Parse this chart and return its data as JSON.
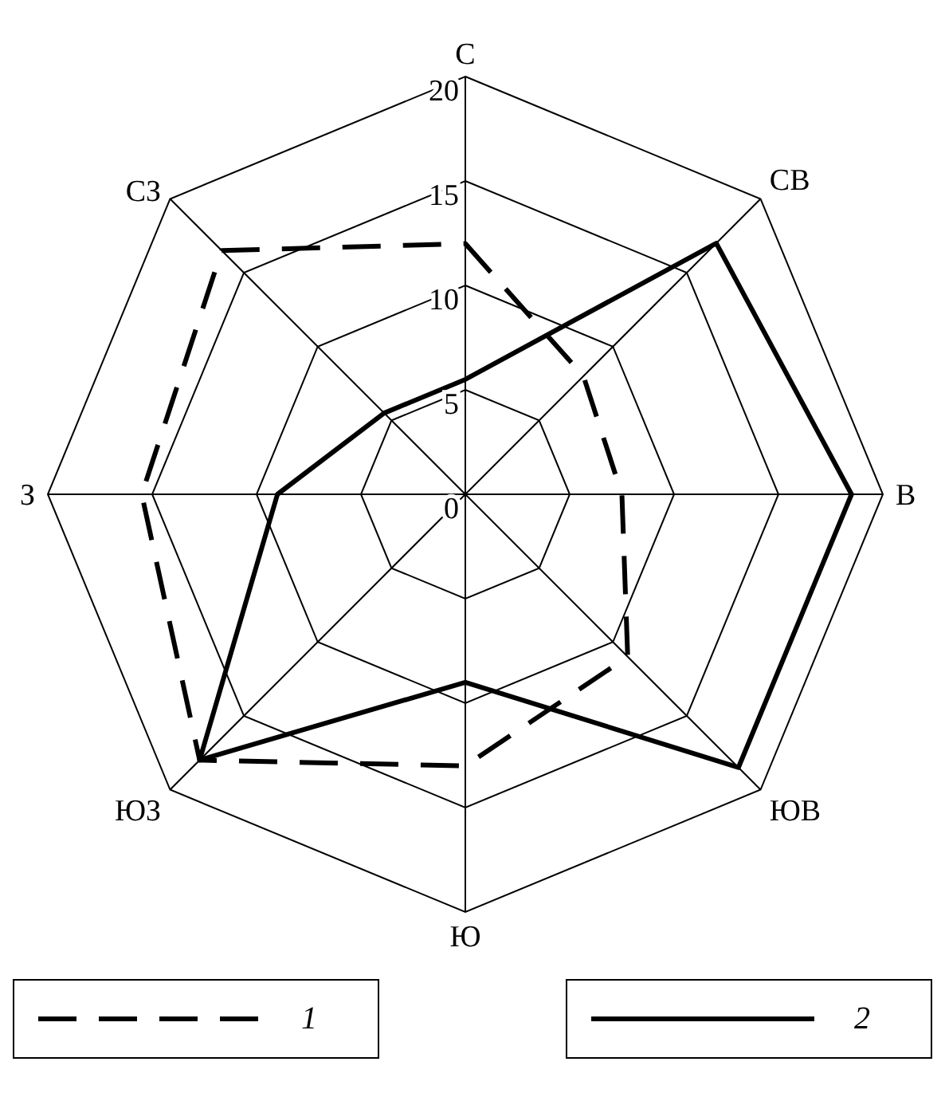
{
  "chart_data": {
    "type": "radar",
    "categories": [
      "С",
      "СВ",
      "В",
      "ЮВ",
      "Ю",
      "ЮЗ",
      "З",
      "СЗ"
    ],
    "series": [
      {
        "name": "1",
        "color": "#000000",
        "line_style": "dashed",
        "values": [
          12,
          8,
          7.5,
          11,
          13,
          18,
          15.5,
          16.5
        ]
      },
      {
        "name": "2",
        "color": "#000000",
        "line_style": "solid",
        "values": [
          5.5,
          17,
          18.5,
          18.5,
          9,
          18,
          9,
          5.5
        ]
      }
    ],
    "ylim": [
      0,
      20
    ],
    "yticks": [
      0,
      5,
      10,
      15,
      20
    ],
    "grid": true,
    "legend": "bottom",
    "marker": "none"
  }
}
